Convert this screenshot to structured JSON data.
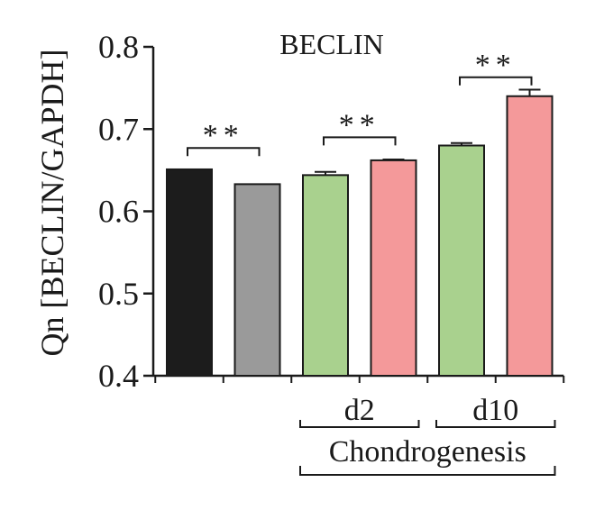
{
  "chart_data": {
    "type": "bar",
    "title": "BECLIN",
    "ylabel": "Qn [BECLIN/GAPDH]",
    "xlabel": "",
    "ylim": [
      0.4,
      0.8
    ],
    "yticks": [
      0.4,
      0.5,
      0.6,
      0.7,
      0.8
    ],
    "ytick_labels": [
      "0.4",
      "0.5",
      "0.6",
      "0.7",
      "0.8"
    ],
    "grid": false,
    "bars": [
      {
        "value": 0.651,
        "error": 0.0,
        "color": "#1c1c1c"
      },
      {
        "value": 0.633,
        "error": 0.0,
        "color": "#9a9a9a"
      },
      {
        "value": 0.644,
        "error": 0.004,
        "color": "#a9d18e"
      },
      {
        "value": 0.662,
        "error": 0.001,
        "color": "#f4999a"
      },
      {
        "value": 0.68,
        "error": 0.003,
        "color": "#a9d18e"
      },
      {
        "value": 0.74,
        "error": 0.008,
        "color": "#f4999a"
      }
    ],
    "significance": [
      {
        "bars": [
          0,
          1
        ],
        "label": "**",
        "level": 0.677
      },
      {
        "bars": [
          2,
          3
        ],
        "label": "**",
        "level": 0.69
      },
      {
        "bars": [
          4,
          5
        ],
        "label": "**",
        "level": 0.763
      }
    ],
    "group_labels": [
      {
        "label": "d2",
        "bars": [
          2,
          3
        ]
      },
      {
        "label": "d10",
        "bars": [
          4,
          5
        ]
      }
    ],
    "super_group_label": {
      "label": "Chondrogenesis",
      "bars": [
        2,
        5
      ]
    }
  }
}
